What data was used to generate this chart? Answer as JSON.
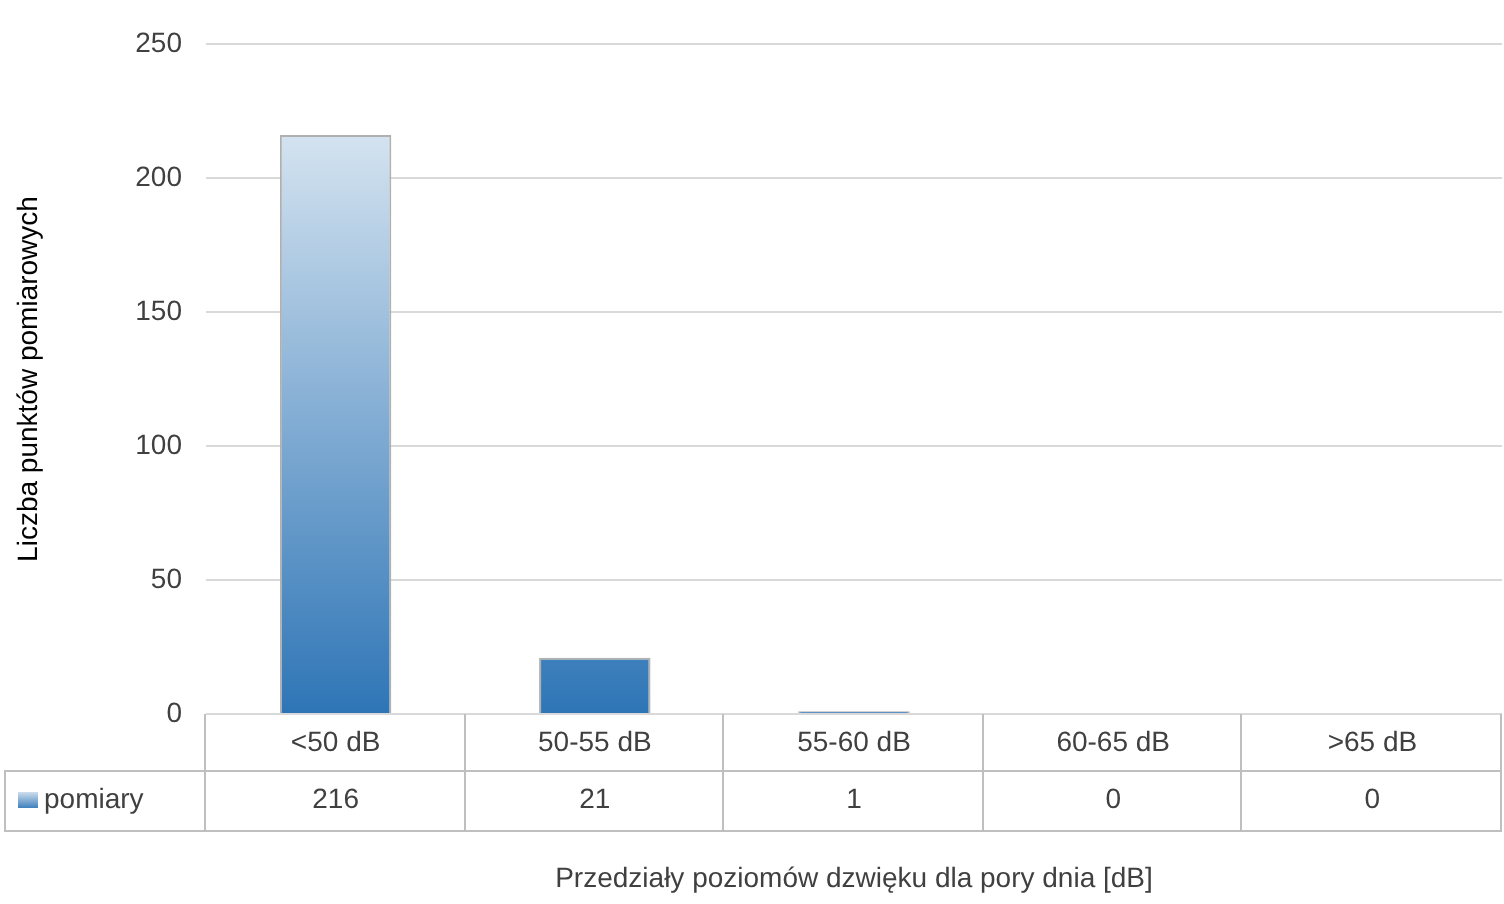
{
  "chart_data": {
    "type": "bar",
    "xlabel": "Przedziały poziomów dzwięku dla pory dnia [dB]",
    "ylabel": "Liczba punktów pomiarowych",
    "categories": [
      "<50 dB",
      "50-55 dB",
      "55-60 dB",
      "60-65 dB",
      ">65 dB"
    ],
    "series": [
      {
        "name": "pomiary",
        "color": "#2e75b6",
        "values": [
          216,
          21,
          1,
          0,
          0
        ]
      }
    ],
    "ylim": [
      0,
      250
    ],
    "yticks": [
      0,
      50,
      100,
      150,
      200,
      250
    ],
    "grid": "y",
    "legend": "bottom",
    "data_labels": true
  }
}
